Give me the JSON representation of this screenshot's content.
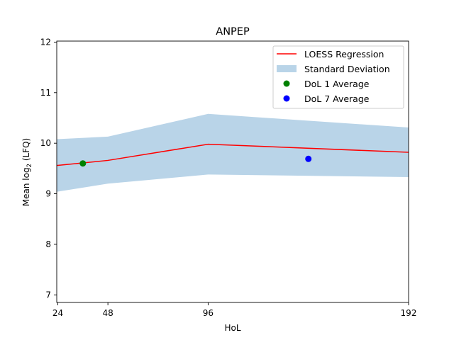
{
  "chart_data": {
    "type": "line",
    "title": "ANPEP",
    "xlabel": "HoL",
    "ylabel_prefix": "Mean log",
    "ylabel_sub": "2",
    "ylabel_suffix": " (LFQ)",
    "xlim": [
      23.5,
      192
    ],
    "ylim": [
      6.85,
      12.02
    ],
    "x_ticks": [
      24,
      48,
      96,
      192
    ],
    "y_ticks": [
      7,
      8,
      9,
      10,
      11,
      12
    ],
    "grid": false,
    "legend_position": "top-right",
    "series": [
      {
        "name": "LOESS Regression",
        "kind": "line",
        "color": "#ff0000",
        "x": [
          23.5,
          36,
          48,
          96,
          192
        ],
        "y": [
          9.56,
          9.61,
          9.66,
          9.98,
          9.82
        ]
      },
      {
        "name": "Standard Deviation",
        "kind": "band",
        "color": "#b9d4e8",
        "x": [
          23.5,
          48,
          96,
          192
        ],
        "upper": [
          10.08,
          10.13,
          10.58,
          10.31
        ],
        "lower": [
          9.04,
          9.2,
          9.38,
          9.33
        ]
      },
      {
        "name": "DoL 1 Average",
        "kind": "scatter",
        "color": "#008000",
        "x": [
          36
        ],
        "y": [
          9.6
        ]
      },
      {
        "name": "DoL 7 Average",
        "kind": "scatter",
        "color": "#0000ff",
        "x": [
          144
        ],
        "y": [
          9.69
        ]
      }
    ]
  }
}
